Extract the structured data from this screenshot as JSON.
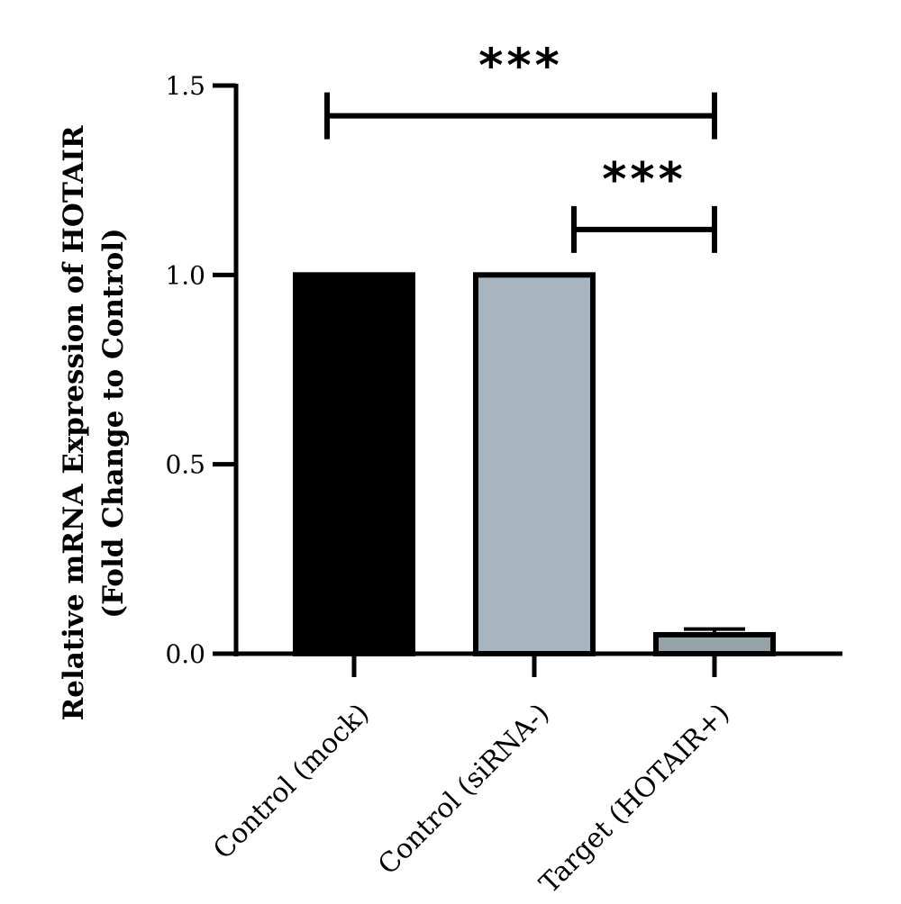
{
  "chart_data": {
    "type": "bar",
    "title": "",
    "xlabel": "",
    "ylabel": [
      "Relative mRNA Expression of HOTAIR",
      "(Fold Change to Control)"
    ],
    "ylim": [
      0,
      1.5
    ],
    "yticks": [
      0.0,
      0.5,
      1.0,
      1.5
    ],
    "ytick_labels": [
      "0.0",
      "0.5",
      "1.0",
      "1.5"
    ],
    "categories": [
      "Control (mock)",
      "Control (siRNA-)",
      "Target (HOTAIR+)"
    ],
    "values": [
      1.0,
      1.0,
      0.05
    ],
    "errors": [
      0,
      0,
      0.015
    ],
    "bar_colors": [
      "#000000",
      "#a6b5bf",
      "#95a2a8"
    ],
    "bar_edge_color": "#000000",
    "grid": false,
    "legend": "none",
    "significance": [
      {
        "from": 0,
        "to": 2,
        "level": 1.42,
        "label": "***"
      },
      {
        "from": 1.3,
        "to": 2,
        "level": 1.12,
        "label": "***"
      }
    ]
  }
}
